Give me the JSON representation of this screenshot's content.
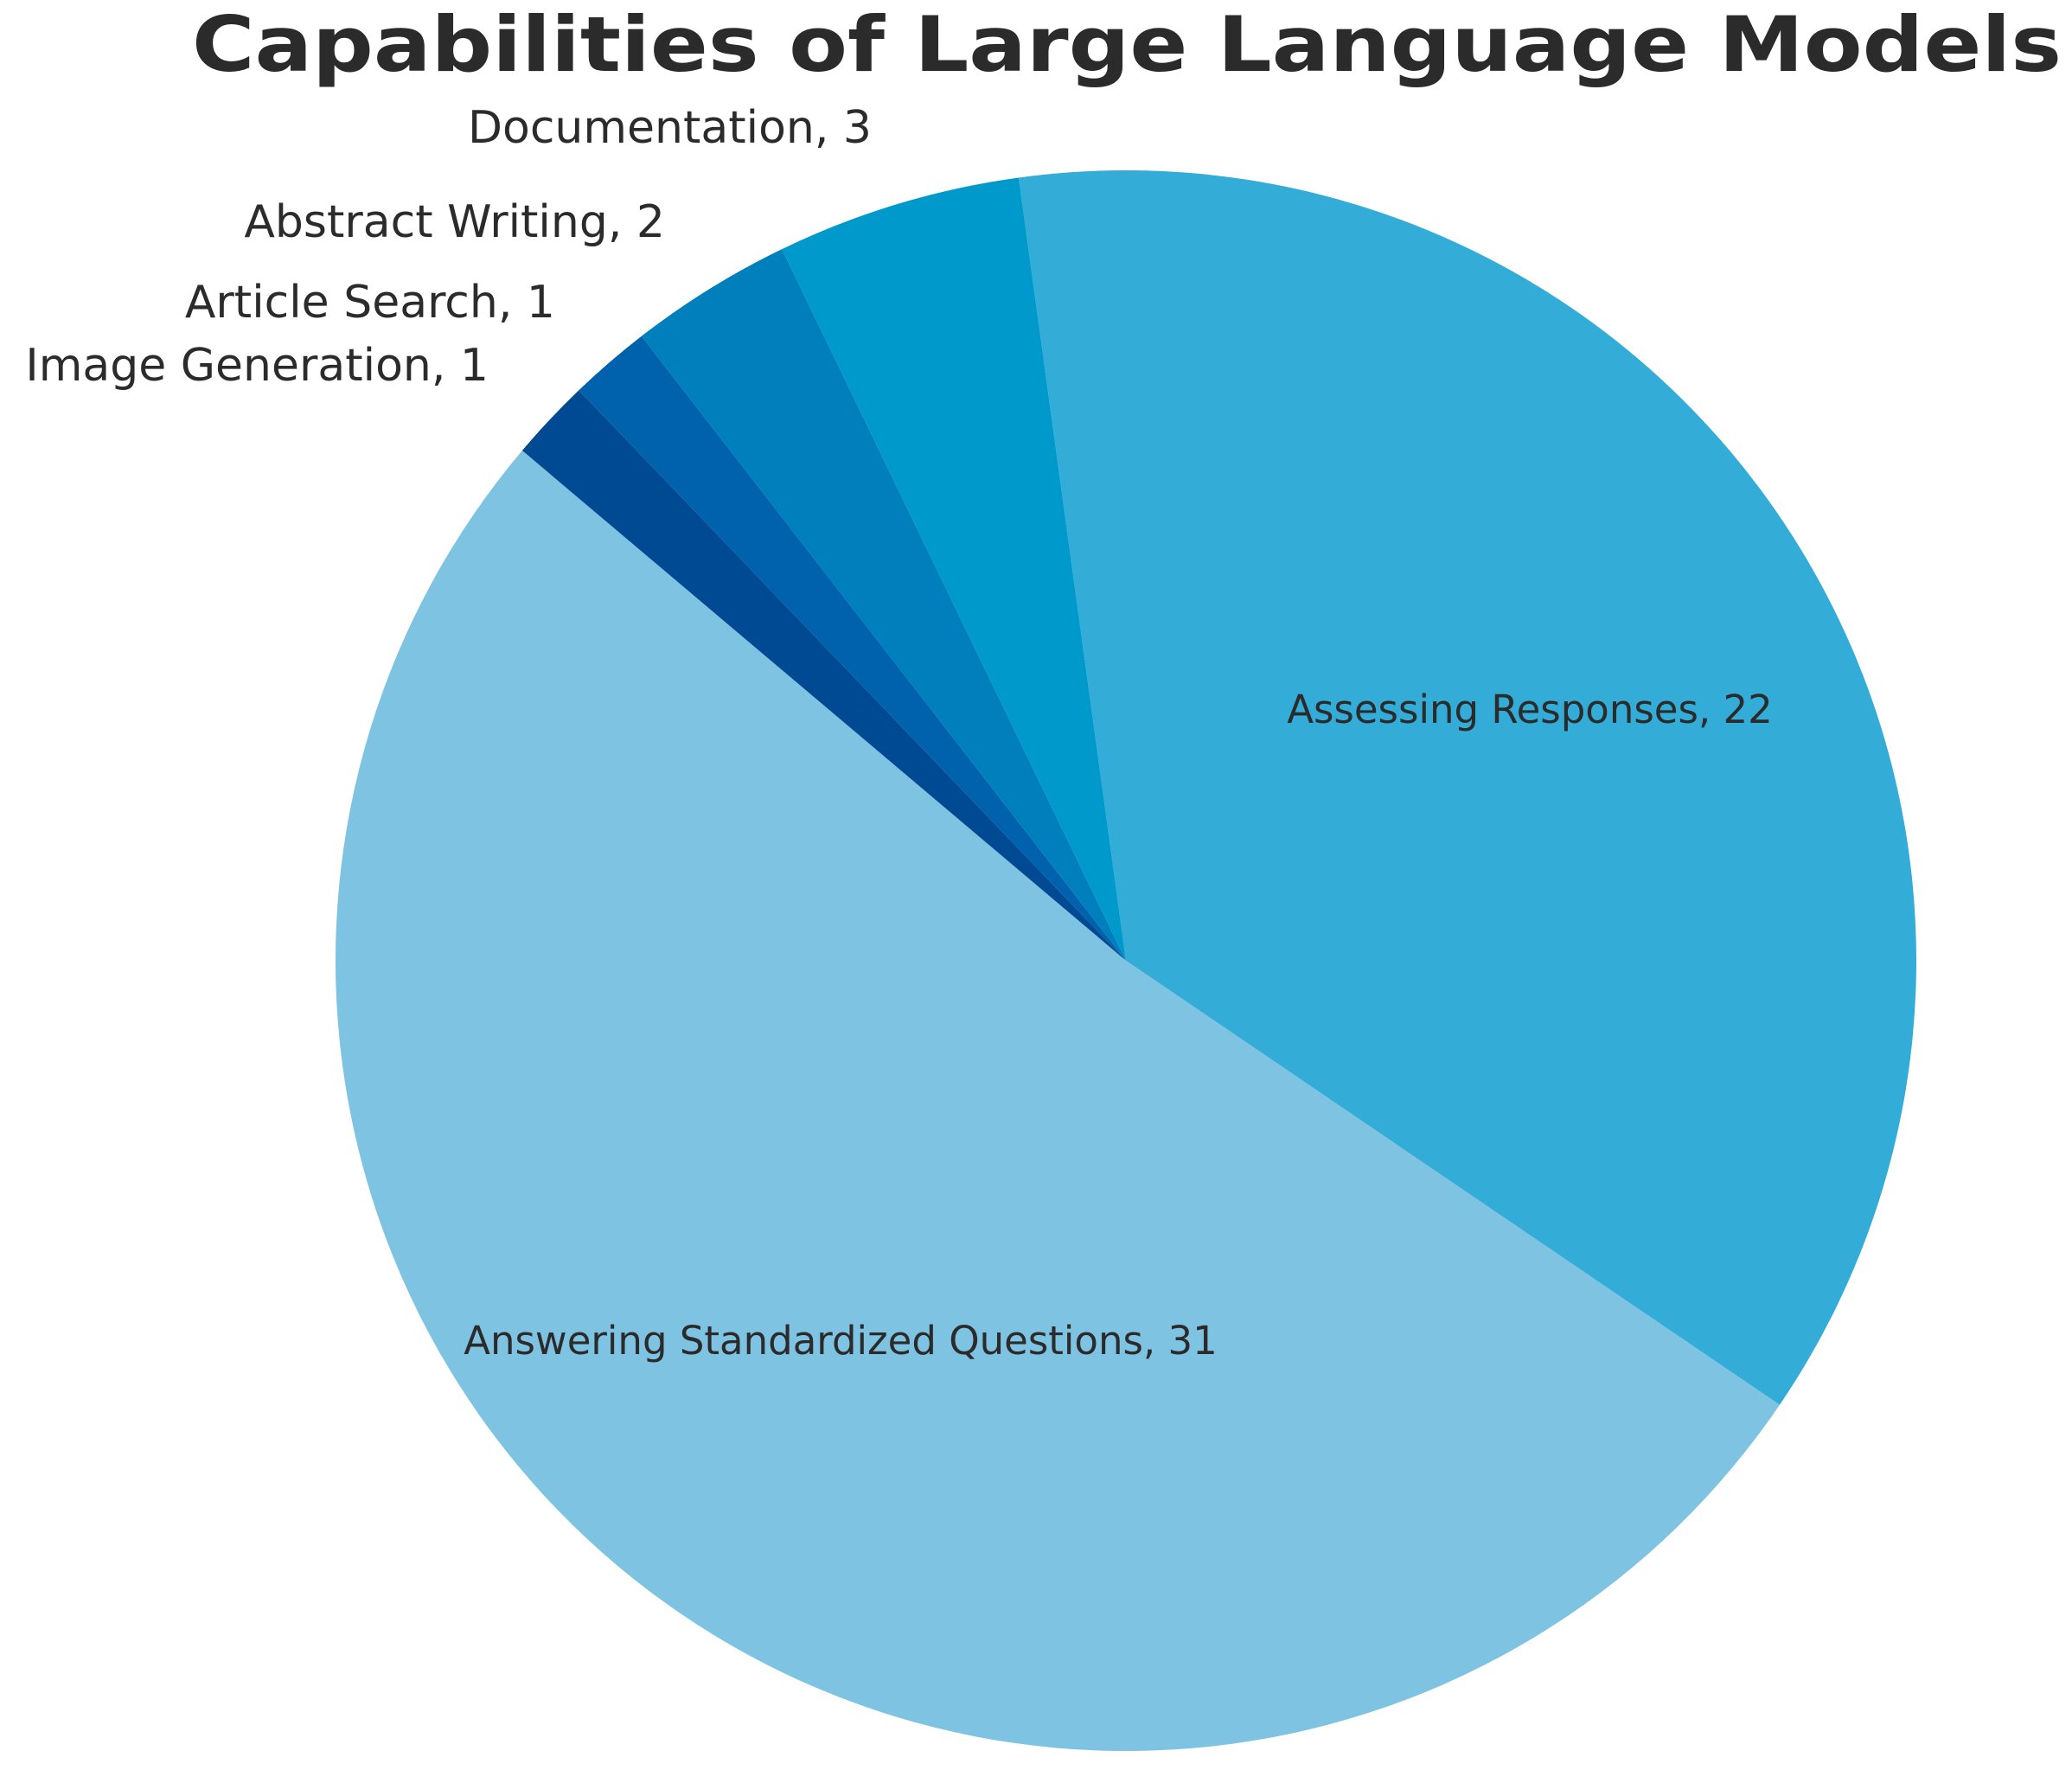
{
  "chart_data": {
    "type": "pie",
    "title": "Capabilities of Large Language Models",
    "values": [
      22,
      31,
      1,
      1,
      2,
      3
    ],
    "value_labels": [
      "Assessing Responses, 22",
      "Answering Standardized Questions, 31",
      "Image Generation, 1",
      "Article Search, 1",
      "Abstract Writing, 2",
      "Documentation, 3"
    ],
    "colors": [
      "#33acd8",
      "#7fc3e2",
      "#004a93",
      "#0062ad",
      "#007fbd",
      "#0099cc"
    ]
  }
}
